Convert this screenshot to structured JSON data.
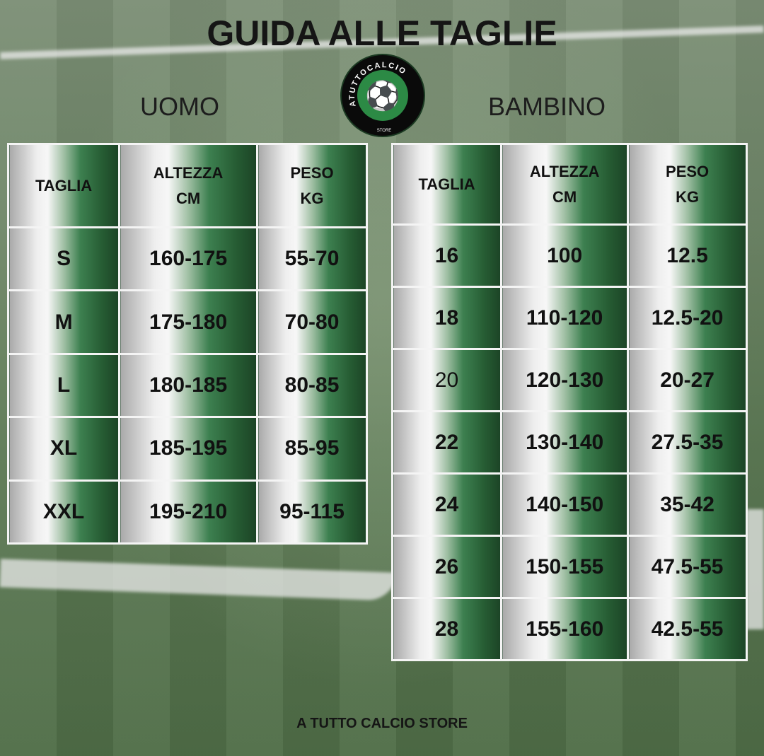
{
  "title": "GUIDA ALLE TAGLIE",
  "logo": {
    "text_top": "ATUTTOCALCIO",
    "text_bottom": "STORE",
    "colors": {
      "ring": "#0a0a0a",
      "center": "#2c8a45"
    }
  },
  "uomo": {
    "label": "UOMO",
    "headers": [
      "TAGLIA",
      "ALTEZZA\nCM",
      "PESO\nKG"
    ],
    "rows": [
      [
        "S",
        "160-175",
        "55-70"
      ],
      [
        "M",
        "175-180",
        "70-80"
      ],
      [
        "L",
        "180-185",
        "80-85"
      ],
      [
        "XL",
        "185-195",
        "85-95"
      ],
      [
        "XXL",
        "195-210",
        "95-115"
      ]
    ]
  },
  "bambino": {
    "label": "BAMBINO",
    "headers": [
      "TAGLIA",
      "ALTEZZA\nCM",
      "PESO\nKG"
    ],
    "rows": [
      [
        "16",
        "100",
        "12.5"
      ],
      [
        "18",
        "110-120",
        "12.5-20"
      ],
      [
        "20",
        "120-130",
        "20-27"
      ],
      [
        "22",
        "130-140",
        "27.5-35"
      ],
      [
        "24",
        "140-150",
        "35-42"
      ],
      [
        "26",
        "150-155",
        "47.5-55"
      ],
      [
        "28",
        "155-160",
        "42.5-55"
      ]
    ]
  },
  "footer": "A TUTTO CALCIO STORE",
  "colors": {
    "cell_gradient_light": "#f7f7f7",
    "cell_gradient_dark": "#1c4426"
  }
}
